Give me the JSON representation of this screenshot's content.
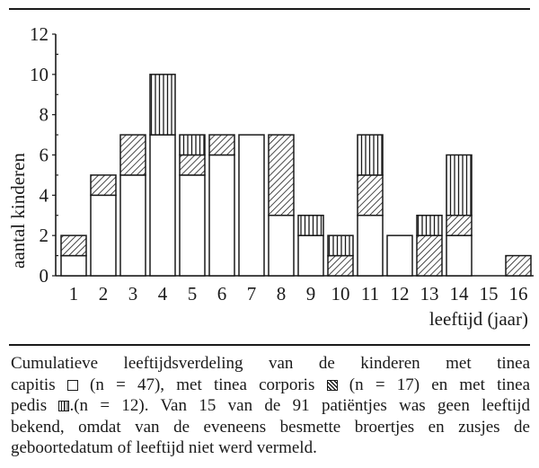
{
  "chart_data": {
    "type": "bar",
    "stacked": true,
    "title": "",
    "xlabel": "leeftijd (jaar)",
    "ylabel": "aantal kinderen",
    "ylim": [
      0,
      12
    ],
    "yticks": [
      0,
      2,
      4,
      6,
      8,
      10,
      12
    ],
    "categories": [
      "1",
      "2",
      "3",
      "4",
      "5",
      "6",
      "7",
      "8",
      "9",
      "10",
      "11",
      "12",
      "13",
      "14",
      "15",
      "16"
    ],
    "series": [
      {
        "name": "tinea capitis",
        "pattern": "blank",
        "n": 47,
        "values": [
          1,
          4,
          5,
          7,
          5,
          6,
          7,
          3,
          2,
          0,
          3,
          2,
          0,
          2,
          0,
          0
        ]
      },
      {
        "name": "tinea corporis",
        "pattern": "diagonal-hatch",
        "n": 17,
        "values": [
          1,
          1,
          2,
          0,
          1,
          1,
          0,
          4,
          0,
          1,
          2,
          0,
          2,
          1,
          0,
          1
        ]
      },
      {
        "name": "tinea pedis",
        "pattern": "vertical-hatch",
        "n": 12,
        "values": [
          0,
          0,
          0,
          3,
          1,
          0,
          0,
          0,
          1,
          1,
          2,
          0,
          1,
          3,
          0,
          0
        ]
      }
    ],
    "totals": [
      2,
      5,
      7,
      10,
      7,
      7,
      7,
      7,
      3,
      2,
      7,
      2,
      3,
      6,
      0,
      1
    ],
    "grid": false,
    "legend": "in caption"
  },
  "caption": {
    "lines": [
      [
        "Cumulatieve leeftijdsverdeling van de kinderen met tinea"
      ],
      [
        "capitis ",
        "(n = 47), met tinea corporis ",
        "(n = 17) en met tinea"
      ],
      [
        "pedis ",
        ".(n = 12). Van 15 van de 91 patiëntjes was geen leeftijd"
      ],
      [
        "bekend, omdat van de eveneens besmette broertjes en zusjes de"
      ],
      [
        "geboortedatum of leeftijd niet werd vermeld."
      ]
    ]
  },
  "colors": {
    "ink": "#1a1a1a",
    "paper": "#ffffff"
  }
}
